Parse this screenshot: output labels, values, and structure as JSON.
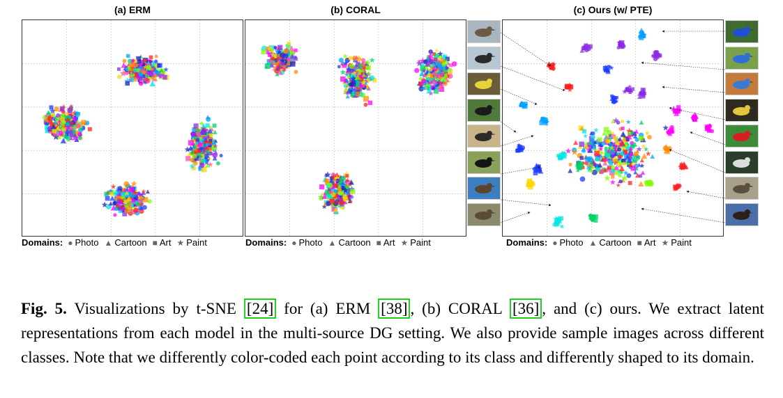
{
  "panels": [
    {
      "title": "(a) ERM"
    },
    {
      "title": "(b) CORAL"
    },
    {
      "title": "(c) Ours (w/ PTE)"
    }
  ],
  "legend": {
    "label": "Domains:",
    "items": [
      {
        "name": "Photo",
        "icon": "circle-icon"
      },
      {
        "name": "Cartoon",
        "icon": "triangle-icon"
      },
      {
        "name": "Art",
        "icon": "square-icon"
      },
      {
        "name": "Paint",
        "icon": "star-icon"
      }
    ]
  },
  "caption": {
    "label": "Fig. 5.",
    "t1": "Visualizations by t-SNE",
    "c1": "[24]",
    "t2": "for (a) ERM",
    "c2": "[38]",
    "t3": ", (b) CORAL",
    "c3": "[36]",
    "t4": ", and (c) ours. We extract latent representations from each model in the multi-source DG setting. We also provide sample images across different classes. Note that we differently color-coded each point according to its class and differently shaped to its domain."
  },
  "colors": {
    "palette": [
      "#ff2020",
      "#ff8c00",
      "#ffd700",
      "#7cff00",
      "#00d26a",
      "#00e5e5",
      "#00a2ff",
      "#1e3cff",
      "#8a2be2",
      "#ff00ff",
      "#ff4da6",
      "#2020c0"
    ],
    "grid": "#bbbbbb",
    "cite_box": "#22d022"
  }
}
